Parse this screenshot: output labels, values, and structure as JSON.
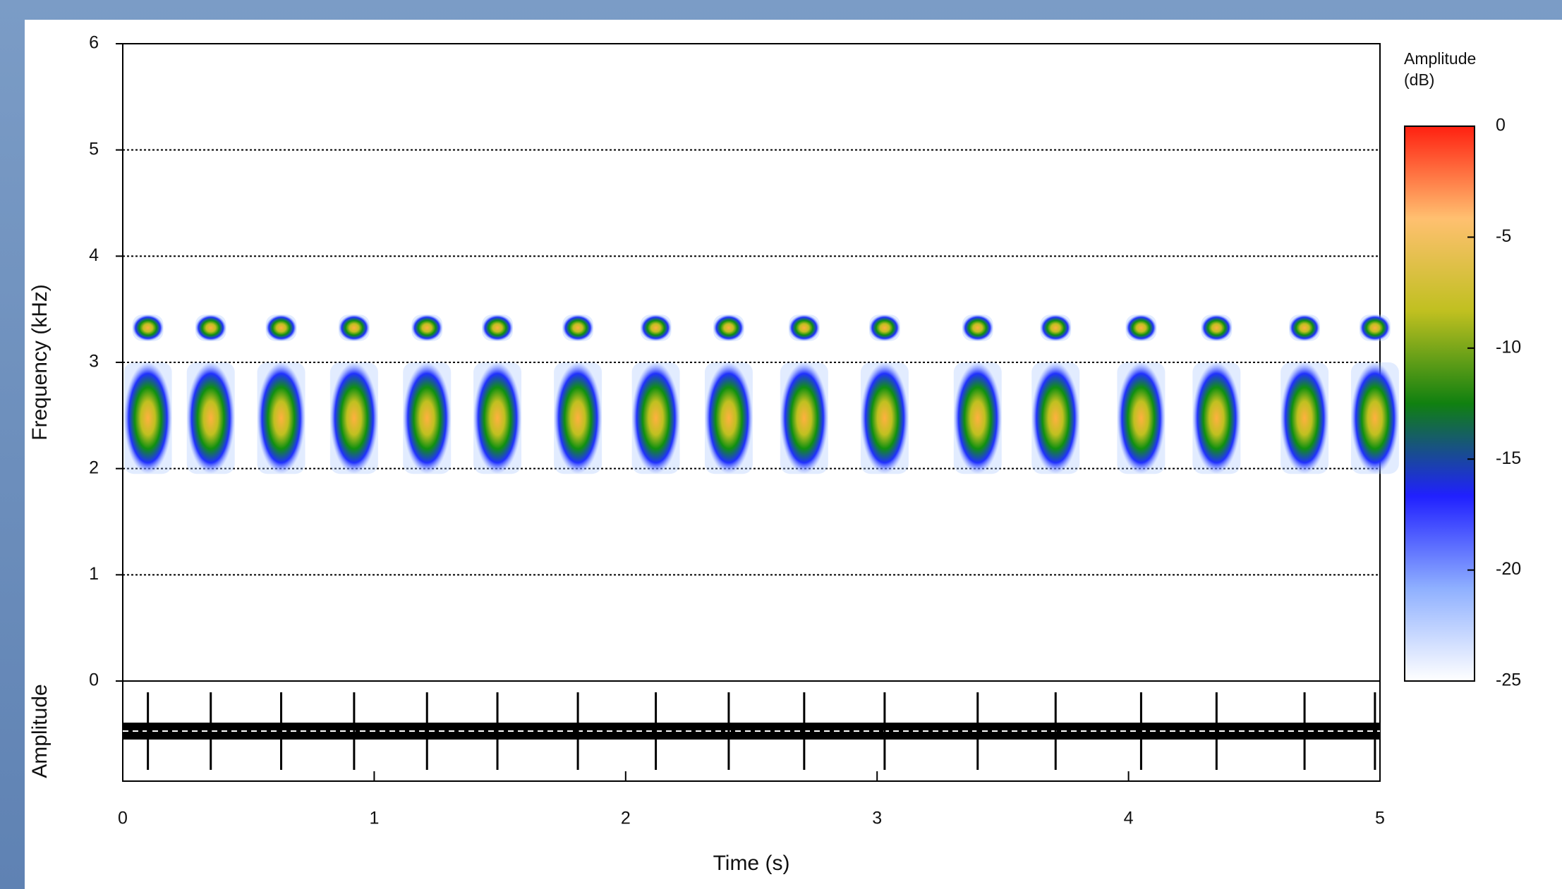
{
  "chart_data": {
    "type": "spectrogram",
    "xlabel": "Time (s)",
    "ylabel": "Frequency (kHz)",
    "ylabel2": "Amplitude",
    "xlim": [
      0,
      5
    ],
    "xticks": [
      0,
      1,
      2,
      3,
      4,
      5
    ],
    "ylim": [
      0,
      6
    ],
    "yticks": [
      0,
      1,
      2,
      3,
      4,
      5,
      6
    ],
    "grid": true,
    "x": [
      0.1,
      0.35,
      0.63,
      0.92,
      1.21,
      1.49,
      1.81,
      2.12,
      2.41,
      2.71,
      3.03,
      3.4,
      3.71,
      4.05,
      4.35,
      4.7,
      4.98
    ],
    "bands": [
      {
        "ymin": 1.95,
        "ymax": 3.0
      },
      {
        "ymin": 3.2,
        "ymax": 3.45
      }
    ],
    "colorbar_title": "Amplitude\n(dB)",
    "zlim": [
      -25,
      0
    ],
    "zticks": [
      0,
      -5,
      -10,
      -15,
      -20,
      -25
    ],
    "colorscale": [
      "#ffffff",
      "#8fb0ff",
      "#2020ff",
      "#108010",
      "#c0c020",
      "#ffc070",
      "#ff2010"
    ]
  }
}
